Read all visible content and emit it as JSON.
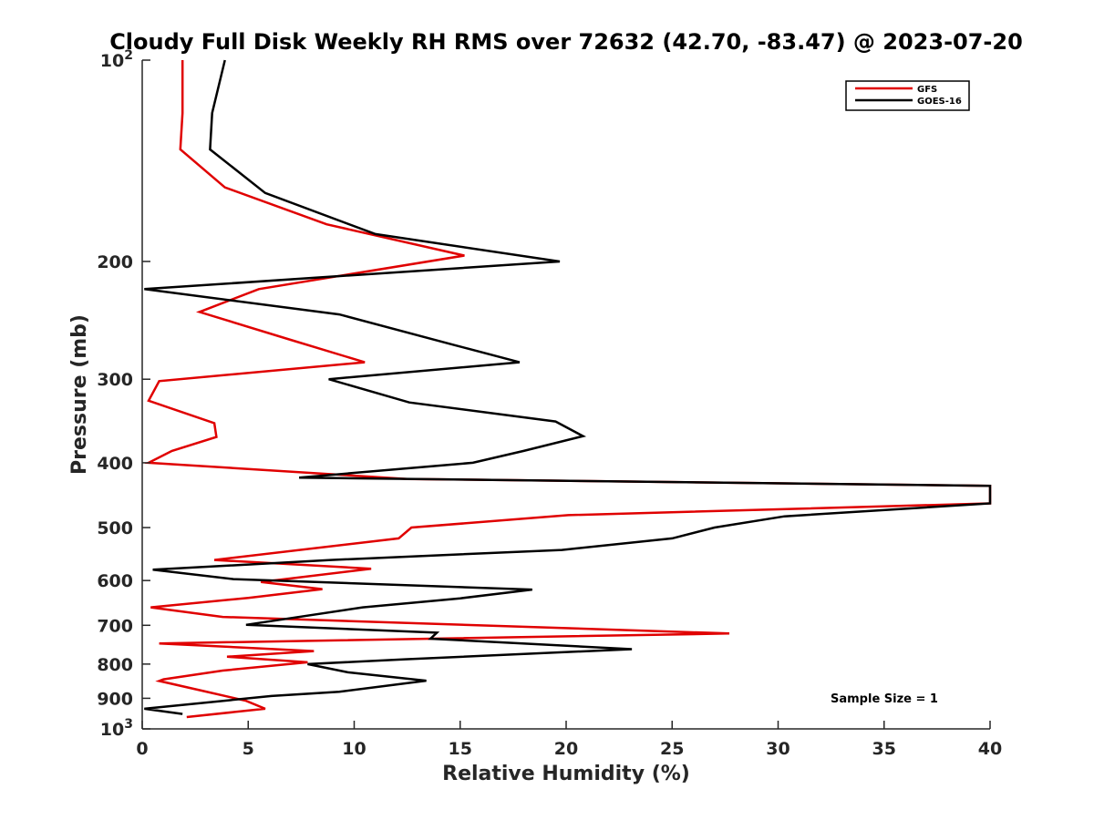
{
  "chart_data": {
    "type": "line",
    "title": "Cloudy Full Disk Weekly RH RMS over 72632 (42.70, -83.47) @ 2023-07-20",
    "xlabel": "Relative Humidity (%)",
    "ylabel": "Pressure (mb)",
    "xlim": [
      0,
      40
    ],
    "ylim": [
      100,
      1000
    ],
    "y_scale": "log",
    "y_reversed": true,
    "x_ticks": [
      "0",
      "5",
      "10",
      "15",
      "20",
      "25",
      "30",
      "35",
      "40"
    ],
    "y_ticks": [
      {
        "value": 100,
        "label": "10",
        "sup": "2"
      },
      {
        "value": 200,
        "label": "200",
        "sup": ""
      },
      {
        "value": 300,
        "label": "300",
        "sup": ""
      },
      {
        "value": 400,
        "label": "400",
        "sup": ""
      },
      {
        "value": 500,
        "label": "500",
        "sup": ""
      },
      {
        "value": 600,
        "label": "600",
        "sup": ""
      },
      {
        "value": 700,
        "label": "700",
        "sup": ""
      },
      {
        "value": 800,
        "label": "800",
        "sup": ""
      },
      {
        "value": 900,
        "label": "900",
        "sup": ""
      },
      {
        "value": 1000,
        "label": "10",
        "sup": "3"
      }
    ],
    "legend_position": "top-right",
    "annotation": "Sample Size = 1",
    "series": [
      {
        "name": "GFS",
        "color": "#e00000",
        "points": [
          [
            1.9,
            100
          ],
          [
            1.9,
            120
          ],
          [
            1.8,
            136
          ],
          [
            3.9,
            155
          ],
          [
            8.7,
            176
          ],
          [
            15.2,
            196
          ],
          [
            5.5,
            220
          ],
          [
            2.7,
            238
          ],
          [
            7.0,
            262
          ],
          [
            10.5,
            283
          ],
          [
            0.8,
            302
          ],
          [
            0.3,
            323
          ],
          [
            3.4,
            349
          ],
          [
            3.5,
            366
          ],
          [
            1.4,
            384
          ],
          [
            0.3,
            400
          ],
          [
            12.5,
            423
          ],
          [
            40,
            433
          ],
          [
            40,
            460
          ],
          [
            20.1,
            479
          ],
          [
            12.7,
            500
          ],
          [
            12.1,
            519
          ],
          [
            3.4,
            559
          ],
          [
            10.8,
            576
          ],
          [
            5.6,
            603
          ],
          [
            8.5,
            618
          ],
          [
            5.0,
            637
          ],
          [
            0.4,
            658
          ],
          [
            3.8,
            680
          ],
          [
            27.7,
            720
          ],
          [
            0.8,
            745
          ],
          [
            8.1,
            765
          ],
          [
            4.0,
            780
          ],
          [
            7.8,
            795
          ],
          [
            3.8,
            818
          ],
          [
            1.0,
            843
          ],
          [
            0.8,
            848
          ],
          [
            2.9,
            878
          ],
          [
            4.9,
            908
          ],
          [
            5.8,
            933
          ],
          [
            2.1,
            960
          ]
        ]
      },
      {
        "name": "GOES-16",
        "color": "#000000",
        "points": [
          [
            3.9,
            100
          ],
          [
            3.3,
            120
          ],
          [
            3.2,
            136
          ],
          [
            5.8,
            158
          ],
          [
            11.0,
            182
          ],
          [
            19.7,
            200
          ],
          [
            0.1,
            220
          ],
          [
            9.3,
            240
          ],
          [
            14.6,
            266
          ],
          [
            17.8,
            283
          ],
          [
            8.8,
            300
          ],
          [
            12.6,
            325
          ],
          [
            19.5,
            347
          ],
          [
            20.8,
            365
          ],
          [
            18.0,
            384
          ],
          [
            15.6,
            400
          ],
          [
            7.4,
            421
          ],
          [
            40,
            433
          ],
          [
            40,
            460
          ],
          [
            30.3,
            481
          ],
          [
            27.0,
            500
          ],
          [
            25.0,
            519
          ],
          [
            19.8,
            540
          ],
          [
            8.9,
            559
          ],
          [
            0.5,
            578
          ],
          [
            4.3,
            597
          ],
          [
            18.4,
            619
          ],
          [
            15.0,
            638
          ],
          [
            10.4,
            658
          ],
          [
            4.9,
            699
          ],
          [
            13.9,
            718
          ],
          [
            13.6,
            733
          ],
          [
            23.1,
            760
          ],
          [
            12.4,
            787
          ],
          [
            7.8,
            800
          ],
          [
            9.7,
            823
          ],
          [
            13.4,
            847
          ],
          [
            9.3,
            880
          ],
          [
            6.1,
            893
          ],
          [
            0.1,
            933
          ],
          [
            1.9,
            950
          ]
        ]
      }
    ]
  }
}
